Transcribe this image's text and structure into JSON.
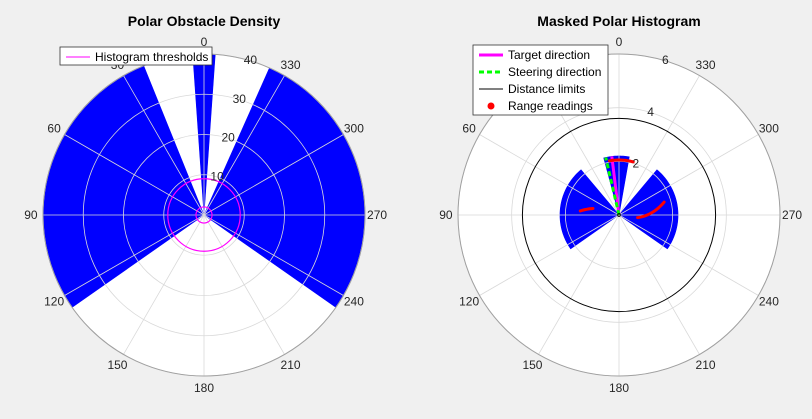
{
  "chart_data": [
    {
      "type": "polar",
      "title": "Polar Obstacle Density",
      "theta_zero": "top",
      "theta_direction": "counterclockwise",
      "theta_ticks": [
        "0",
        "30",
        "60",
        "90",
        "120",
        "150",
        "180",
        "210",
        "240",
        "270",
        "300",
        "330"
      ],
      "r_ticks": [
        "10",
        "20",
        "30",
        "40"
      ],
      "rlim": [
        0,
        40
      ],
      "grid": true,
      "legend": {
        "position": "top-left",
        "entries": [
          {
            "label": "Histogram thresholds",
            "color": "#ff00ff"
          }
        ]
      },
      "series": [
        {
          "kind": "polar-histogram",
          "color": "#0000ff",
          "bins": [
            {
              "theta_start": -4,
              "theta_end": 4,
              "r": 40
            },
            {
              "theta_start": 22,
              "theta_end": 125,
              "r": 40
            },
            {
              "theta_start": 235,
              "theta_end": 336,
              "r": 40
            }
          ]
        },
        {
          "kind": "threshold-circles",
          "color": "#ff00ff",
          "radii": [
            2,
            9
          ]
        }
      ]
    },
    {
      "type": "polar",
      "title": "Masked Polar Histogram",
      "theta_zero": "top",
      "theta_direction": "counterclockwise",
      "theta_ticks": [
        "0",
        "30",
        "60",
        "90",
        "120",
        "150",
        "180",
        "210",
        "240",
        "270",
        "300",
        "330"
      ],
      "r_ticks": [
        "2",
        "4",
        "6"
      ],
      "rlim": [
        0,
        6
      ],
      "grid": true,
      "legend": {
        "position": "top-left",
        "entries": [
          {
            "label": "Target direction",
            "color": "#ff00ff",
            "style": "solid"
          },
          {
            "label": "Steering direction",
            "color": "#00ff00",
            "style": "dashed"
          },
          {
            "label": "Distance limits",
            "color": "#000000",
            "style": "solid"
          },
          {
            "label": "Range readings",
            "color": "#ff0000",
            "style": "dot"
          }
        ]
      },
      "series": [
        {
          "kind": "masked-histogram",
          "color": "#0000ff",
          "bins": [
            {
              "theta_start": -10,
              "theta_end": 15,
              "r": 2.2
            },
            {
              "theta_start": 40,
              "theta_end": 125,
              "r": 2.2
            },
            {
              "theta_start": 235,
              "theta_end": 320,
              "r": 2.2
            }
          ]
        },
        {
          "kind": "target-direction",
          "color": "#ff00ff",
          "theta": 7,
          "r": 2.2
        },
        {
          "kind": "steering-direction",
          "color": "#00ff00",
          "theta": 13,
          "r": 2.2
        },
        {
          "kind": "distance-limits",
          "color": "#000000",
          "radii": [
            0.05,
            3.6
          ]
        },
        {
          "kind": "range-readings",
          "color": "#ff0000",
          "arcs": [
            {
              "theta_start": 345,
              "theta_end": 10,
              "r": 2.05
            },
            {
              "theta_start": 76,
              "theta_end": 84,
              "r": 1.0,
              "r_end": 1.45
            },
            {
              "theta_start": 262,
              "theta_end": 286,
              "r": 0.7,
              "r_end": 1.75
            }
          ]
        }
      ]
    }
  ]
}
